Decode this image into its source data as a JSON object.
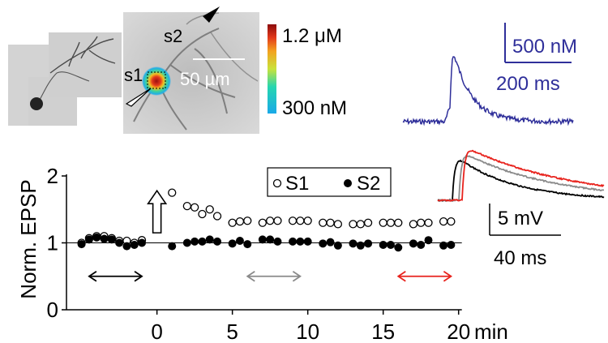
{
  "images": {
    "cell_overview": {},
    "calcium_map": {
      "site1_label": "s1",
      "site2_label": "s2",
      "scale_bar_label": "50 µm",
      "colorbar_max": "1.2 μM",
      "colorbar_min": "300 nM"
    }
  },
  "ca_trace": {
    "scale_y_label": "500 nM",
    "scale_x_label": "200 ms",
    "color": "#2f2f9a"
  },
  "epsp_traces": {
    "scale_y_label": "5 mV",
    "scale_x_label": "40 ms",
    "colors": {
      "baseline": "#000000",
      "mid": "#8a8a8a",
      "late": "#e8231d"
    }
  },
  "chart_data": {
    "type": "scatter",
    "ylabel": "Norm. EPSP",
    "x_unit_label": "min",
    "xlim": [
      -6,
      20.5
    ],
    "ylim": [
      0,
      2
    ],
    "xticks": [
      0,
      5,
      10,
      15,
      20
    ],
    "yticks": [
      0,
      1,
      2
    ],
    "reference_line_y": 1,
    "legend_position": "top-center",
    "series": [
      {
        "name": "S1",
        "marker": "open-circle",
        "x": [
          -5,
          -4.5,
          -4,
          -3.5,
          -3,
          -2.5,
          -2,
          -1.5,
          -1,
          1,
          2,
          2.5,
          3,
          3.5,
          4,
          5,
          5.5,
          6,
          7,
          7.5,
          8,
          9,
          9.5,
          10,
          11,
          11.5,
          12,
          13,
          13.5,
          14,
          15,
          15.5,
          16,
          17,
          17.5,
          18,
          19,
          19.5
        ],
        "y": [
          1.0,
          1.07,
          1.1,
          1.1,
          1.07,
          1.03,
          1.03,
          1.0,
          1.04,
          1.75,
          1.55,
          1.53,
          1.43,
          1.5,
          1.4,
          1.3,
          1.32,
          1.33,
          1.3,
          1.33,
          1.33,
          1.33,
          1.33,
          1.33,
          1.3,
          1.3,
          1.28,
          1.28,
          1.28,
          1.3,
          1.3,
          1.3,
          1.3,
          1.28,
          1.3,
          1.3,
          1.32,
          1.32
        ]
      },
      {
        "name": "S2",
        "marker": "filled-circle",
        "x": [
          -5,
          -4.5,
          -4,
          -3.5,
          -3,
          -2.5,
          -2,
          -1.5,
          -1,
          1,
          2,
          2.5,
          3,
          3.5,
          4,
          5,
          5.5,
          6,
          7,
          7.5,
          8,
          9,
          9.5,
          10,
          11,
          11.5,
          12,
          13,
          13.5,
          14,
          15,
          15.5,
          16,
          17,
          17.5,
          18,
          19,
          19.5
        ],
        "y": [
          0.98,
          1.05,
          1.08,
          1.06,
          1.05,
          1.0,
          0.95,
          0.97,
          1.0,
          0.95,
          1.0,
          1.02,
          1.02,
          1.05,
          1.02,
          0.99,
          1.03,
          0.98,
          1.05,
          1.05,
          1.02,
          1.02,
          1.02,
          1.02,
          0.99,
          1.01,
          0.96,
          0.99,
          0.96,
          0.99,
          0.97,
          0.97,
          0.93,
          0.99,
          0.97,
          1.04,
          0.96,
          0.97
        ]
      }
    ],
    "time_windows": [
      {
        "x": [
          -4.5,
          -1
        ],
        "color": "#000000"
      },
      {
        "x": [
          6,
          9.5
        ],
        "color": "#8a8a8a"
      },
      {
        "x": [
          16,
          19.5
        ],
        "color": "#e8231d"
      }
    ],
    "stimulus_marker_x": 0,
    "stimulus_marker_y": 1.5
  }
}
